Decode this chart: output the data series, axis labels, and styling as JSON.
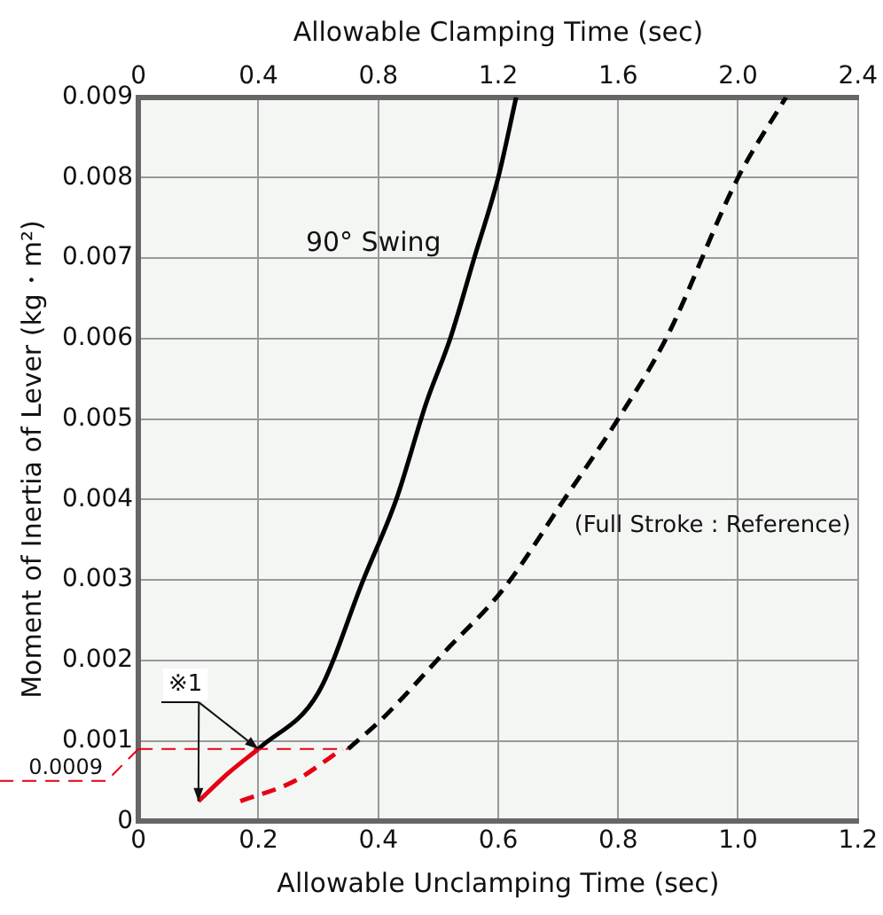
{
  "chart_data": {
    "type": "line",
    "xlabel": "Allowable Unclamping Time (sec)",
    "x2label": "Allowable Clamping Time (sec)",
    "ylabel": "Moment of Inertia of Lever (kg・m²)",
    "xlim": [
      0,
      1.2
    ],
    "xticks": [
      0,
      0.2,
      0.4,
      0.6,
      0.8,
      {
        "value": 1,
        "label": "1.0"
      },
      1.2
    ],
    "x2lim": [
      0,
      2.4
    ],
    "x2ticks": [
      0,
      0.4,
      0.8,
      1.2,
      1.6,
      {
        "value": 2,
        "label": "2.0"
      },
      2.4
    ],
    "ylim": [
      0,
      0.009
    ],
    "yticks": [
      0,
      0.001,
      0.002,
      0.003,
      0.004,
      0.005,
      0.006,
      0.007,
      0.008,
      0.009
    ],
    "series": [
      {
        "name": "90° Swing",
        "color": "#000000",
        "line_style": "solid",
        "x": [
          0.2,
          0.3,
          0.375,
          0.43,
          0.48,
          0.52,
          0.56,
          0.6,
          0.63
        ],
        "values": [
          0.0009,
          0.0016,
          0.003,
          0.004,
          0.0052,
          0.006,
          0.007,
          0.008,
          0.009
        ]
      },
      {
        "name": "(Full Stroke : Reference)",
        "color": "#000000",
        "line_style": "dashed",
        "x": [
          0.35,
          0.41,
          0.51,
          0.61,
          0.71,
          0.8,
          0.88,
          1.0,
          1.08
        ],
        "values": [
          0.0009,
          0.0013,
          0.0021,
          0.0029,
          0.004,
          0.005,
          0.006,
          0.008,
          0.009
        ]
      },
      {
        "color": "#e60012",
        "line_style": "solid",
        "x": [
          0.1,
          0.15,
          0.2
        ],
        "values": [
          0.00025,
          0.0006,
          0.0009
        ]
      },
      {
        "color": "#e60012",
        "line_style": "dashed",
        "x": [
          0.17,
          0.26,
          0.34
        ],
        "values": [
          0.00025,
          0.0005,
          0.0009
        ]
      }
    ],
    "ref_lines": [
      {
        "axis": "y",
        "value": 0.0009,
        "label": "0.0009",
        "color": "#e60012",
        "line_style": "dashed"
      }
    ],
    "annotations": [
      {
        "text": "※1",
        "x": 0.2,
        "y": 0.0009
      }
    ],
    "grid": true,
    "legend": false,
    "marker": "none"
  }
}
